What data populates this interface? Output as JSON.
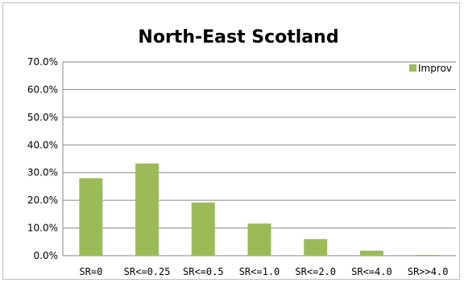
{
  "chart_data": {
    "type": "bar",
    "title": "North-East Scotland",
    "categories": [
      "SR=0",
      "SR<=0.25",
      "SR<=0.5",
      "SR<=1.0",
      "SR<=2.0",
      "SR<=4.0",
      "SR>>4.0"
    ],
    "series": [
      {
        "name": "Improv",
        "values": [
          28.0,
          33.3,
          19.2,
          11.6,
          6.0,
          1.8,
          0.3
        ],
        "color": "#9bbb59"
      }
    ],
    "xlabel": "",
    "ylabel": "",
    "ylim": [
      0,
      70
    ],
    "yticks": [
      "0.0%",
      "10.0%",
      "20.0%",
      "30.0%",
      "40.0%",
      "50.0%",
      "60.0%",
      "70.0%"
    ],
    "grid": true,
    "legend_position": "top-right",
    "gridline_color": "#868686",
    "axis_color": "#868686"
  }
}
